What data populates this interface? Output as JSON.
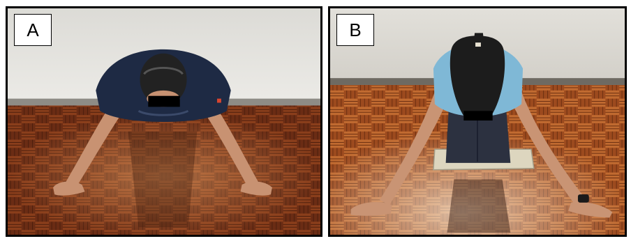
{
  "panels": [
    {
      "label": "A"
    },
    {
      "label": "B"
    }
  ],
  "colors": {
    "wall": "#e6e5e1",
    "floor_dark": "#4a1f10",
    "floor_mid": "#7a3418",
    "floor_light": "#b0602d",
    "shirt_a": "#1e2a44",
    "shirt_b": "#7fb8d6",
    "hair": "#1c1c1c",
    "skin": "#c99474",
    "jeans": "#2c3140",
    "cushion": "#ddd6bf",
    "censor_bar": "#000000"
  }
}
